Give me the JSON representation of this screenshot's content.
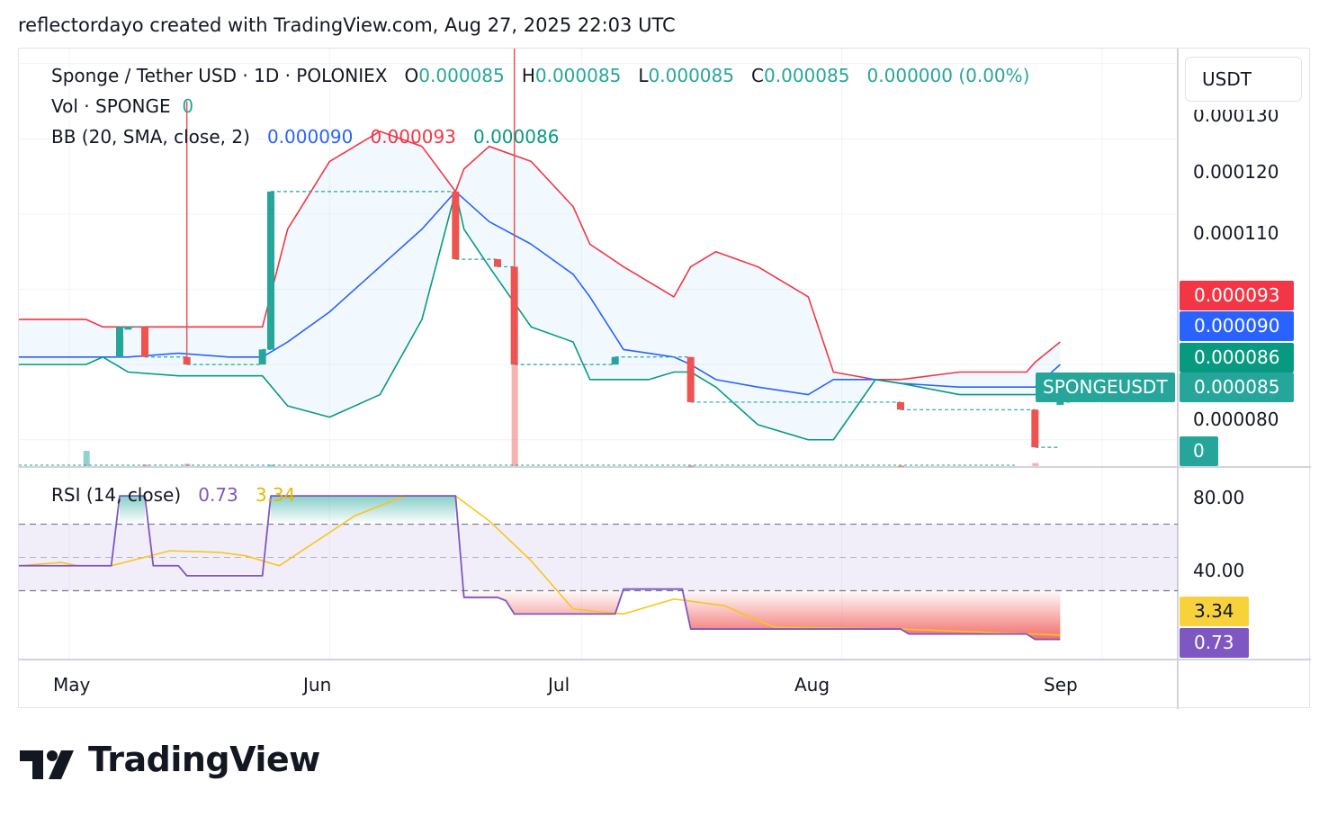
{
  "credit": "reflectordayo created with TradingView.com, Aug 27, 2025 22:03 UTC",
  "legend": {
    "symbol": "Sponge / Tether USD · 1D · POLONIEX",
    "o_label": "O",
    "o_value": "0.000085",
    "h_label": "H",
    "h_value": "0.000085",
    "l_label": "L",
    "l_value": "0.000085",
    "c_label": "C",
    "c_value": "0.000085",
    "change": "0.000000 (0.00%)",
    "vol_label": "Vol · SPONGE",
    "vol_value": "0",
    "bb_label": "BB (20, SMA, close, 2)",
    "bb_basis": "0.000090",
    "bb_upper": "0.000093",
    "bb_lower": "0.000086",
    "rsi_label": "RSI (14, close)",
    "rsi_value": "0.73",
    "rsi_ma": "3.34"
  },
  "currency": "USDT",
  "price_axis": [
    "0.000130",
    "0.000120",
    "0.000110",
    "0.000080"
  ],
  "price_tags": {
    "upper": "0.000093",
    "basis": "0.000090",
    "lower": "0.000086",
    "symbol": "SPONGEUSDT",
    "last": "0.000085",
    "volume": "0"
  },
  "rsi_axis": [
    "80.00",
    "40.00"
  ],
  "rsi_tags": {
    "ma": "3.34",
    "rsi": "0.73"
  },
  "time_axis": [
    "May",
    "Jun",
    "Jul",
    "Aug",
    "Sep"
  ],
  "colors": {
    "up": "#26a69a",
    "down": "#ef5350",
    "bb_basis": "#2962ff",
    "bb_upper": "#f23645",
    "bb_lower": "#089981",
    "rsi": "#7e57c2",
    "rsi_ma": "#f7c51d"
  },
  "logo_text": "TradingView",
  "chart_data": [
    {
      "type": "candlestick",
      "title": "Sponge / Tether USD · 1D · POLONIEX",
      "x_range": [
        "2025-04-25",
        "2025-09-10"
      ],
      "ylim": [
        7.65e-05,
        0.000132
      ],
      "candles": [
        {
          "date": "2025-05-07",
          "o": 9.1e-05,
          "h": 9.5e-05,
          "l": 9.1e-05,
          "c": 9.5e-05
        },
        {
          "date": "2025-05-08",
          "o": 9.5e-05,
          "h": 9.5e-05,
          "l": 9.5e-05,
          "c": 9.5e-05
        },
        {
          "date": "2025-05-10",
          "o": 9.5e-05,
          "h": 9.5e-05,
          "l": 9.1e-05,
          "c": 9.1e-05
        },
        {
          "date": "2025-05-15",
          "o": 9.1e-05,
          "h": 0.000125,
          "l": 9e-05,
          "c": 9e-05
        },
        {
          "date": "2025-05-24",
          "o": 9e-05,
          "h": 9.2e-05,
          "l": 9e-05,
          "c": 9.2e-05
        },
        {
          "date": "2025-05-25",
          "o": 9.2e-05,
          "h": 0.000113,
          "l": 9.2e-05,
          "c": 0.000113
        },
        {
          "date": "2025-06-16",
          "o": 0.000113,
          "h": 0.000113,
          "l": 0.000104,
          "c": 0.000104
        },
        {
          "date": "2025-06-21",
          "o": 0.000104,
          "h": 0.000104,
          "l": 0.000103,
          "c": 0.000103
        },
        {
          "date": "2025-06-23",
          "o": 0.000103,
          "h": 0.000148,
          "l": 9e-05,
          "c": 9e-05
        },
        {
          "date": "2025-07-05",
          "o": 9e-05,
          "h": 9.1e-05,
          "l": 9e-05,
          "c": 9.1e-05
        },
        {
          "date": "2025-07-14",
          "o": 9.1e-05,
          "h": 9.1e-05,
          "l": 8.5e-05,
          "c": 8.5e-05
        },
        {
          "date": "2025-08-08",
          "o": 8.5e-05,
          "h": 8.5e-05,
          "l": 8.4e-05,
          "c": 8.4e-05
        },
        {
          "date": "2025-08-24",
          "o": 8.4e-05,
          "h": 8.4e-05,
          "l": 7.9e-05,
          "c": 7.9e-05
        },
        {
          "date": "2025-08-27",
          "o": 8.5e-05,
          "h": 8.5e-05,
          "l": 8.5e-05,
          "c": 8.5e-05
        }
      ],
      "bollinger": {
        "label": "BB (20, SMA, close, 2)",
        "dates": [
          "2025-04-25",
          "2025-05-03",
          "2025-05-05",
          "2025-05-08",
          "2025-05-14",
          "2025-05-20",
          "2025-05-24",
          "2025-05-27",
          "2025-06-01",
          "2025-06-07",
          "2025-06-12",
          "2025-06-16",
          "2025-06-17",
          "2025-06-20",
          "2025-06-25",
          "2025-06-30",
          "2025-07-02",
          "2025-07-06",
          "2025-07-09",
          "2025-07-12",
          "2025-07-14",
          "2025-07-17",
          "2025-07-22",
          "2025-07-28",
          "2025-07-31",
          "2025-08-05",
          "2025-08-08",
          "2025-08-15",
          "2025-08-23",
          "2025-08-24",
          "2025-08-27"
        ],
        "upper": [
          9.6e-05,
          9.6e-05,
          9.5e-05,
          9.5e-05,
          9.5e-05,
          9.5e-05,
          9.5e-05,
          0.000108,
          0.000117,
          0.000121,
          0.000119,
          0.000113,
          0.000116,
          0.000119,
          0.000117,
          0.000111,
          0.000106,
          0.000103,
          0.000101,
          9.9e-05,
          0.000103,
          0.000105,
          0.000103,
          9.9e-05,
          8.9e-05,
          8.8e-05,
          8.8e-05,
          8.9e-05,
          8.9e-05,
          9.03e-05,
          9.3e-05
        ],
        "basis": [
          9.1e-05,
          9.1e-05,
          9.1e-05,
          9.1e-05,
          9.15e-05,
          9.1e-05,
          9.1e-05,
          9.3e-05,
          9.7e-05,
          0.000103,
          0.000108,
          0.000113,
          0.000112,
          0.000109,
          0.000106,
          0.000102,
          9.9e-05,
          9.2e-05,
          9.15e-05,
          9.1e-05,
          9e-05,
          8.8e-05,
          8.7e-05,
          8.6e-05,
          8.8e-05,
          8.8e-05,
          8.75e-05,
          8.7e-05,
          8.7e-05,
          8.7e-05,
          9e-05
        ],
        "lower": [
          9e-05,
          9e-05,
          9.1e-05,
          8.9e-05,
          8.85e-05,
          8.85e-05,
          8.85e-05,
          8.45e-05,
          8.3e-05,
          8.6e-05,
          9.6e-05,
          0.000113,
          0.000108,
          0.000103,
          9.5e-05,
          9.3e-05,
          8.8e-05,
          8.8e-05,
          8.8e-05,
          8.9e-05,
          8.9e-05,
          8.7e-05,
          8.2e-05,
          8e-05,
          8e-05,
          8.8e-05,
          8.75e-05,
          8.6e-05,
          8.6e-05,
          8.6e-05,
          8.6e-05
        ]
      },
      "volume": [
        {
          "date": "2025-05-03",
          "value": 1.0,
          "dir": "up"
        },
        {
          "date": "2025-05-10",
          "value": 0.1,
          "dir": "down"
        },
        {
          "date": "2025-05-15",
          "value": 0.15,
          "dir": "down"
        },
        {
          "date": "2025-05-25",
          "value": 0.1,
          "dir": "up"
        },
        {
          "date": "2025-06-23",
          "value": 6.7,
          "dir": "down"
        },
        {
          "date": "2025-07-14",
          "value": 0.05,
          "dir": "down"
        },
        {
          "date": "2025-08-08",
          "value": 0.05,
          "dir": "down"
        },
        {
          "date": "2025-08-24",
          "value": 0.2,
          "dir": "down"
        }
      ]
    },
    {
      "type": "line",
      "title": "RSI (14, close)",
      "ylim": [
        0,
        93
      ],
      "bands": {
        "upper": 70,
        "middle": 50,
        "lower": 30
      },
      "series": [
        {
          "name": "RSI",
          "dates": [
            "2025-04-25",
            "2025-05-06",
            "2025-05-07",
            "2025-05-10",
            "2025-05-11",
            "2025-05-14",
            "2025-05-15",
            "2025-05-24",
            "2025-05-25",
            "2025-06-16",
            "2025-06-17",
            "2025-06-21",
            "2025-06-22",
            "2025-06-23",
            "2025-07-05",
            "2025-07-06",
            "2025-07-13",
            "2025-07-14",
            "2025-08-08",
            "2025-08-09",
            "2025-08-23",
            "2025-08-24",
            "2025-08-27"
          ],
          "values": [
            45,
            45,
            87,
            87,
            45,
            45,
            39,
            39,
            87,
            87,
            26,
            26,
            24,
            16,
            16,
            31,
            31,
            7,
            7,
            4,
            4,
            0.73,
            0.73
          ]
        },
        {
          "name": "RSI-based MA",
          "dates": [
            "2025-04-25",
            "2025-04-30",
            "2025-05-02",
            "2025-05-06",
            "2025-05-13",
            "2025-05-19",
            "2025-05-22",
            "2025-05-26",
            "2025-06-04",
            "2025-06-10",
            "2025-06-16",
            "2025-06-20",
            "2025-06-25",
            "2025-06-30",
            "2025-07-06",
            "2025-07-12",
            "2025-07-18",
            "2025-07-24",
            "2025-08-08",
            "2025-08-27"
          ],
          "values": [
            45,
            47,
            45,
            45,
            54,
            53,
            51,
            45,
            75,
            87,
            87,
            72,
            48,
            19,
            16,
            25,
            21,
            8,
            7,
            3.34
          ]
        }
      ]
    }
  ]
}
